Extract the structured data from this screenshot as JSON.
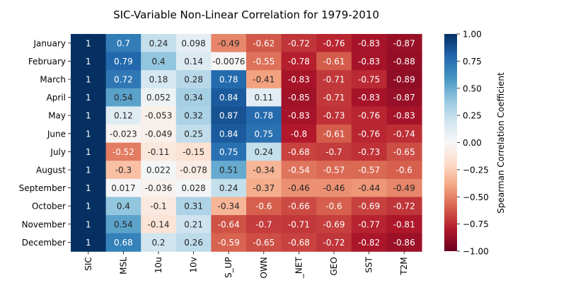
{
  "chart_data": {
    "type": "heatmap",
    "title": "SIC-Variable Non-Linear Correlation for 1979-2010",
    "x_tick_labels": [
      "SIC",
      "MSL",
      "10u",
      "10v",
      "S_UP",
      "OWN",
      "_NET",
      "GEO",
      "SST",
      "T2M"
    ],
    "y_tick_labels": [
      "January",
      "February",
      "March",
      "April",
      "May",
      "June",
      "July",
      "August",
      "September",
      "October",
      "November",
      "December"
    ],
    "values": [
      [
        1,
        0.7,
        0.24,
        0.098,
        -0.49,
        -0.62,
        -0.72,
        -0.76,
        -0.83,
        -0.87
      ],
      [
        1,
        0.79,
        0.4,
        0.14,
        -0.0076,
        -0.55,
        -0.78,
        -0.61,
        -0.83,
        -0.88
      ],
      [
        1,
        0.72,
        0.18,
        0.28,
        0.78,
        -0.41,
        -0.83,
        -0.71,
        -0.75,
        -0.89
      ],
      [
        1,
        0.54,
        0.052,
        0.34,
        0.84,
        0.11,
        -0.85,
        -0.71,
        -0.83,
        -0.87
      ],
      [
        1,
        0.12,
        -0.053,
        0.32,
        0.87,
        0.78,
        -0.83,
        -0.73,
        -0.76,
        -0.83
      ],
      [
        1,
        -0.023,
        -0.049,
        0.25,
        0.84,
        0.75,
        -0.8,
        -0.61,
        -0.76,
        -0.74
      ],
      [
        1,
        -0.52,
        -0.11,
        -0.15,
        0.75,
        0.24,
        -0.68,
        -0.7,
        -0.73,
        -0.65
      ],
      [
        1,
        -0.3,
        0.022,
        -0.078,
        0.51,
        -0.34,
        -0.54,
        -0.57,
        -0.57,
        -0.6
      ],
      [
        1,
        0.017,
        -0.036,
        0.028,
        0.24,
        -0.37,
        -0.46,
        -0.46,
        -0.44,
        -0.49
      ],
      [
        1,
        0.4,
        -0.1,
        0.31,
        -0.34,
        -0.6,
        -0.66,
        -0.6,
        -0.69,
        -0.72
      ],
      [
        1,
        0.54,
        -0.14,
        0.21,
        -0.64,
        -0.7,
        -0.71,
        -0.69,
        -0.77,
        -0.81
      ],
      [
        1,
        0.68,
        0.2,
        0.26,
        -0.59,
        -0.65,
        -0.68,
        -0.72,
        -0.82,
        -0.86
      ]
    ],
    "value_labels": [
      [
        "1",
        "0.7",
        "0.24",
        "0.098",
        "-0.49",
        "-0.62",
        "-0.72",
        "-0.76",
        "-0.83",
        "-0.87"
      ],
      [
        "1",
        "0.79",
        "0.4",
        "0.14",
        "-0.0076",
        "-0.55",
        "-0.78",
        "-0.61",
        "-0.83",
        "-0.88"
      ],
      [
        "1",
        "0.72",
        "0.18",
        "0.28",
        "0.78",
        "-0.41",
        "-0.83",
        "-0.71",
        "-0.75",
        "-0.89"
      ],
      [
        "1",
        "0.54",
        "0.052",
        "0.34",
        "0.84",
        "0.11",
        "-0.85",
        "-0.71",
        "-0.83",
        "-0.87"
      ],
      [
        "1",
        "0.12",
        "-0.053",
        "0.32",
        "0.87",
        "0.78",
        "-0.83",
        "-0.73",
        "-0.76",
        "-0.83"
      ],
      [
        "1",
        "-0.023",
        "-0.049",
        "0.25",
        "0.84",
        "0.75",
        "-0.8",
        "-0.61",
        "-0.76",
        "-0.74"
      ],
      [
        "1",
        "-0.52",
        "-0.11",
        "-0.15",
        "0.75",
        "0.24",
        "-0.68",
        "-0.7",
        "-0.73",
        "-0.65"
      ],
      [
        "1",
        "-0.3",
        "0.022",
        "-0.078",
        "0.51",
        "-0.34",
        "-0.54",
        "-0.57",
        "-0.57",
        "-0.6"
      ],
      [
        "1",
        "0.017",
        "-0.036",
        "0.028",
        "0.24",
        "-0.37",
        "-0.46",
        "-0.46",
        "-0.44",
        "-0.49"
      ],
      [
        "1",
        "0.4",
        "-0.1",
        "0.31",
        "-0.34",
        "-0.6",
        "-0.66",
        "-0.6",
        "-0.69",
        "-0.72"
      ],
      [
        "1",
        "0.54",
        "-0.14",
        "0.21",
        "-0.64",
        "-0.7",
        "-0.71",
        "-0.69",
        "-0.77",
        "-0.81"
      ],
      [
        "1",
        "0.68",
        "0.2",
        "0.26",
        "-0.59",
        "-0.65",
        "-0.68",
        "-0.72",
        "-0.82",
        "-0.86"
      ]
    ],
    "colorbar": {
      "label": "Spearman Correlation Coefficient",
      "range": [
        -1,
        1
      ],
      "ticks": [
        1.0,
        0.75,
        0.5,
        0.25,
        0.0,
        -0.25,
        -0.5,
        -0.75,
        -1.0
      ],
      "tick_labels": [
        "1.00",
        "0.75",
        "0.50",
        "0.25",
        "0.00",
        "−0.25",
        "−0.50",
        "−0.75",
        "−1.00"
      ],
      "colormap": "RdBu",
      "color_low": "#67001f",
      "color_mid": "#f7f7f7",
      "color_high": "#053061"
    },
    "grid": false
  }
}
